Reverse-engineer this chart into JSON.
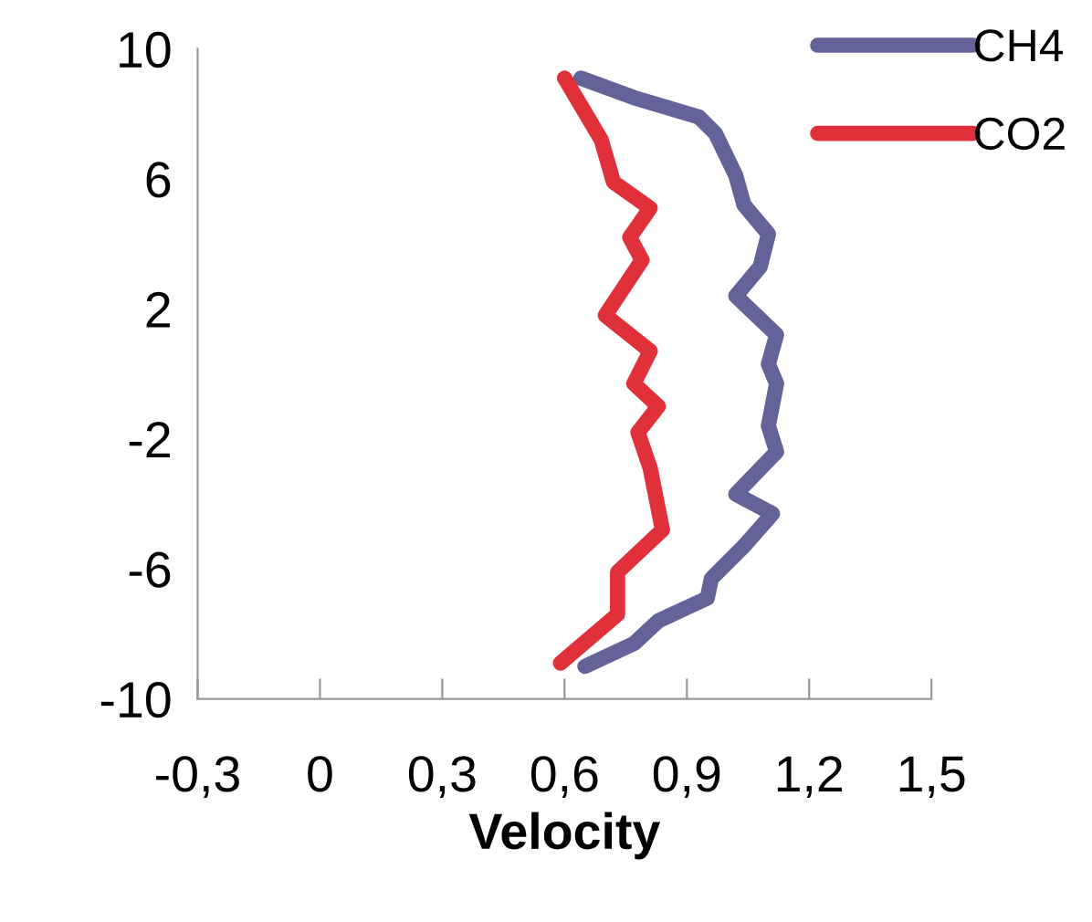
{
  "chart_data": {
    "type": "line",
    "xlabel": "Velocity",
    "xlim": [
      -0.3,
      1.5
    ],
    "xticks": [
      {
        "value": -0.3,
        "label": "-0,3"
      },
      0,
      {
        "value": 0.3,
        "label": "0,3"
      },
      {
        "value": 0.6,
        "label": "0,6"
      },
      {
        "value": 0.9,
        "label": "0,9"
      },
      {
        "value": 1.2,
        "label": "1,2"
      },
      {
        "value": 1.5,
        "label": "1,5"
      }
    ],
    "ylim": [
      -10,
      10
    ],
    "yticks": [
      -10,
      -6,
      -2,
      2,
      6,
      10
    ],
    "grid": false,
    "legend": "top right",
    "marker": "none",
    "line_style": "solid",
    "series": [
      {
        "name": "CH4",
        "color": "#636399",
        "x": [
          0.64,
          0.77,
          0.93,
          0.97,
          1.02,
          1.04,
          1.1,
          1.08,
          1.02,
          1.12,
          1.1,
          1.12,
          1.1,
          1.12,
          1.02,
          1.11,
          1.04,
          0.96,
          0.95,
          0.83,
          0.77,
          0.65
        ],
        "values": [
          9.1,
          8.5,
          7.9,
          7.4,
          6.1,
          5.2,
          4.3,
          3.3,
          2.4,
          1.2,
          0.3,
          -0.3,
          -1.6,
          -2.4,
          -3.7,
          -4.3,
          -5.3,
          -6.3,
          -6.9,
          -7.6,
          -8.3,
          -9.0
        ]
      },
      {
        "name": "CO2",
        "color": "#e0303a",
        "x": [
          0.6,
          0.69,
          0.72,
          0.81,
          0.76,
          0.79,
          0.7,
          0.81,
          0.77,
          0.83,
          0.78,
          0.81,
          0.84,
          0.73,
          0.73,
          0.59
        ],
        "values": [
          9.1,
          7.2,
          5.9,
          5.1,
          4.2,
          3.5,
          1.8,
          0.7,
          -0.3,
          -1.0,
          -1.8,
          -2.9,
          -4.8,
          -6.1,
          -7.4,
          -8.9
        ]
      }
    ]
  }
}
